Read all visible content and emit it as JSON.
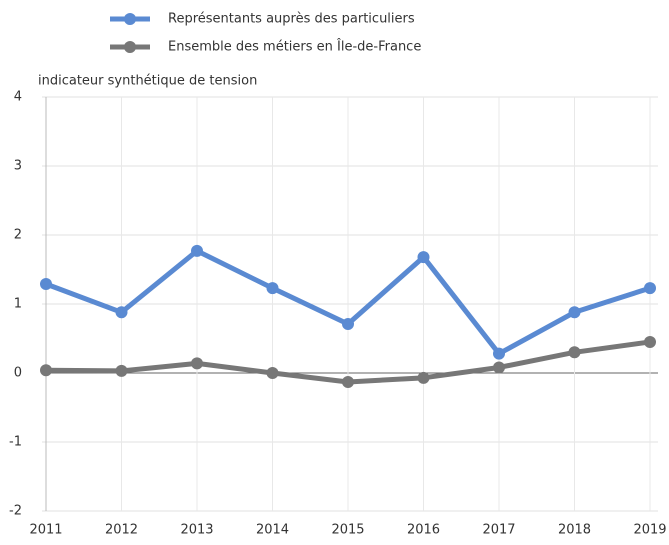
{
  "chart_data": {
    "type": "line",
    "y_label": "indicateur synthétique de tension",
    "x": [
      2011,
      2012,
      2013,
      2014,
      2015,
      2016,
      2017,
      2018,
      2019
    ],
    "series": [
      {
        "name": "Représentants auprès des particuliers",
        "color": "#5a8ad2",
        "values": [
          1.29,
          0.88,
          1.77,
          1.23,
          0.71,
          1.68,
          0.28,
          0.88,
          1.23
        ]
      },
      {
        "name": "Ensemble des métiers en Île-de-France",
        "color": "#777777",
        "values": [
          0.04,
          0.03,
          0.14,
          0,
          -0.13,
          -0.07,
          0.08,
          0.3,
          0.45
        ]
      }
    ],
    "xlim": [
      2011,
      2019
    ],
    "xticks": [
      2011,
      2012,
      2013,
      2014,
      2015,
      2016,
      2017,
      2018,
      2019
    ],
    "ylim": [
      -2,
      4
    ],
    "yticks": [
      -2,
      -1,
      0,
      1,
      2,
      3,
      4
    ],
    "grid": true
  }
}
